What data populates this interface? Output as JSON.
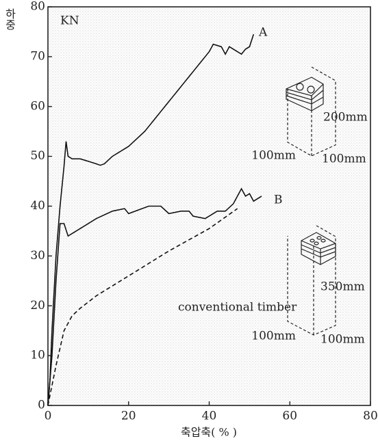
{
  "chart_data": {
    "type": "line",
    "y_label": "하중",
    "y_unit": "KN",
    "x_label": "축압축( % )",
    "xlim": [
      0,
      80
    ],
    "xticks": [
      0,
      20,
      40,
      60,
      80
    ],
    "ylim": [
      0,
      80
    ],
    "yticks": [
      0,
      10,
      20,
      30,
      40,
      50,
      60,
      70,
      80
    ],
    "series": [
      {
        "name": "A",
        "color": "#111111",
        "style": "solid",
        "x": [
          0,
          0.5,
          1,
          2,
          3,
          4,
          4.5,
          5,
          6,
          8,
          10,
          12,
          13,
          14,
          16,
          20,
          24,
          26,
          30,
          35,
          40,
          41,
          43,
          44,
          45,
          47,
          48,
          49,
          50,
          51
        ],
        "values": [
          0,
          5,
          15,
          30,
          40,
          48,
          53,
          50,
          49.5,
          49.5,
          49,
          48.5,
          48.2,
          48.5,
          50,
          52,
          55,
          57,
          61,
          66,
          71,
          72.5,
          72,
          70.5,
          72,
          71,
          70.5,
          71.5,
          72,
          74.5
        ]
      },
      {
        "name": "B",
        "color": "#111111",
        "style": "solid",
        "x": [
          0,
          1,
          2,
          3,
          4,
          5,
          6,
          8,
          12,
          16,
          19,
          20,
          25,
          28,
          30,
          33,
          35,
          36,
          39,
          42,
          44,
          46,
          47,
          48,
          49,
          50,
          51,
          53
        ],
        "values": [
          0,
          10,
          25,
          36.5,
          36.5,
          34,
          34.5,
          35.5,
          37.5,
          39,
          39.5,
          38.5,
          40,
          40,
          38.5,
          39,
          39,
          38,
          37.5,
          39,
          39,
          40.5,
          42,
          43.5,
          42,
          42.5,
          41,
          42
        ]
      },
      {
        "name": "conventional timber",
        "color": "#111111",
        "style": "dashed",
        "x": [
          0,
          2,
          4,
          6,
          8,
          12,
          20,
          30,
          40,
          47
        ],
        "values": [
          0,
          8,
          15,
          18,
          19.5,
          22,
          26,
          31,
          35.5,
          39.5
        ]
      }
    ],
    "annotations": [
      "200mm",
      "100mm",
      "100mm",
      "350mm",
      "100mm",
      "100mm"
    ]
  }
}
